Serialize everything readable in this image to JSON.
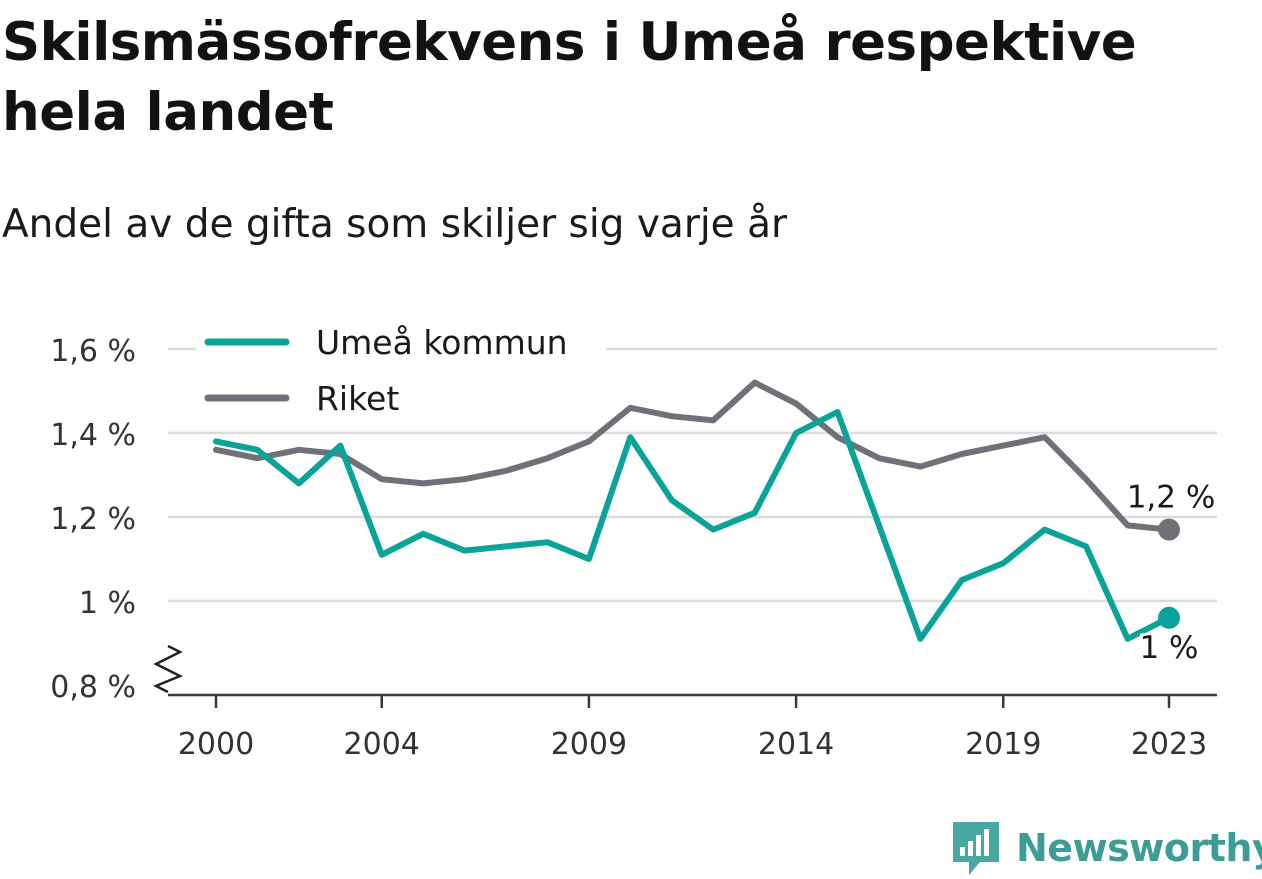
{
  "title": "Skilsmässofrekvens i Umeå respektive hela landet",
  "subtitle": "Andel av de gifta som skiljer sig varje år",
  "brand": "Newsworthy",
  "colors": {
    "umea": "#0aa39a",
    "riket": "#707078",
    "grid": "#dcdcdc",
    "axis": "#3a3a3a"
  },
  "chart_data": {
    "type": "line",
    "x": [
      2000,
      2001,
      2002,
      2003,
      2004,
      2005,
      2006,
      2007,
      2008,
      2009,
      2010,
      2011,
      2012,
      2013,
      2014,
      2015,
      2016,
      2017,
      2018,
      2019,
      2020,
      2021,
      2022,
      2023
    ],
    "xticks": [
      2000,
      2004,
      2009,
      2014,
      2019,
      2023
    ],
    "ylim": [
      0.8,
      1.6
    ],
    "yticks": [
      0.8,
      1.0,
      1.2,
      1.4,
      1.6
    ],
    "ytick_labels": [
      "0,8 %",
      "1 %",
      "1,2 %",
      "1,4 %",
      "1,6 %"
    ],
    "y_axis_break": true,
    "grid": true,
    "legend": "top-left",
    "series": [
      {
        "name": "Umeå kommun",
        "key": "umea",
        "values": [
          1.38,
          1.36,
          1.28,
          1.37,
          1.11,
          1.16,
          1.12,
          1.13,
          1.14,
          1.1,
          1.39,
          1.24,
          1.17,
          1.21,
          1.4,
          1.45,
          1.18,
          0.91,
          1.05,
          1.09,
          1.17,
          1.13,
          0.91,
          0.96
        ],
        "end_label": "1 %"
      },
      {
        "name": "Riket",
        "key": "riket",
        "values": [
          1.36,
          1.34,
          1.36,
          1.35,
          1.29,
          1.28,
          1.29,
          1.31,
          1.34,
          1.38,
          1.46,
          1.44,
          1.43,
          1.52,
          1.47,
          1.39,
          1.34,
          1.32,
          1.35,
          1.37,
          1.39,
          1.29,
          1.18,
          1.17
        ],
        "end_label": "1,2 %"
      }
    ]
  }
}
